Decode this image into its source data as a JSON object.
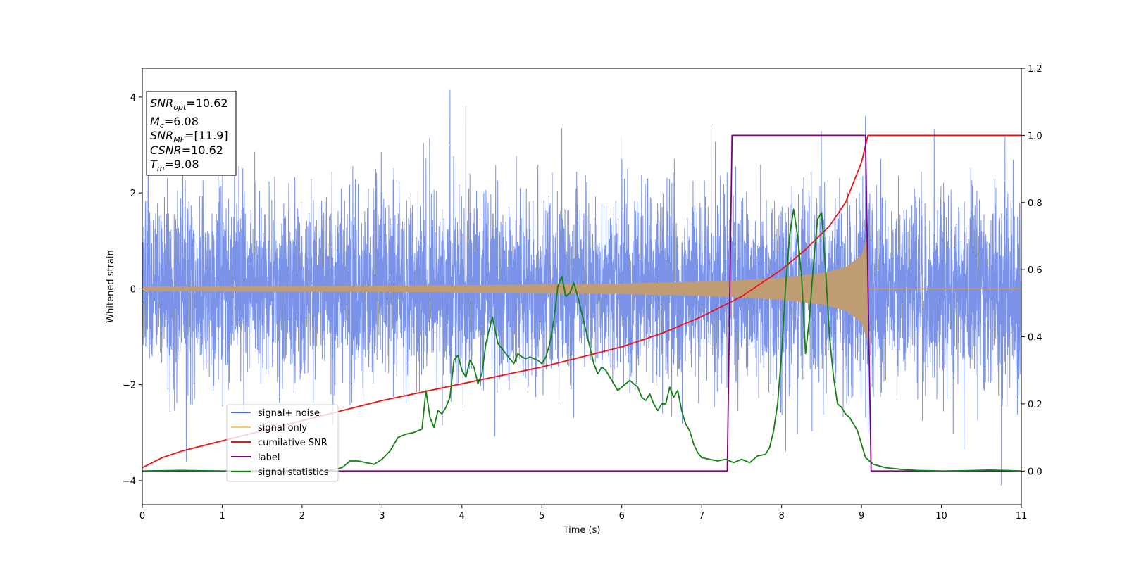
{
  "chart_data": {
    "type": "line",
    "title": "",
    "xlabel": "Time (s)",
    "ylabel": "Whitened strain",
    "xlim": [
      0,
      11
    ],
    "ylim": [
      -4.5,
      4.6
    ],
    "y2lim": [
      -0.1,
      1.2
    ],
    "x_ticks": [
      "0",
      "1",
      "2",
      "3",
      "4",
      "5",
      "6",
      "7",
      "8",
      "9",
      "10",
      "11"
    ],
    "y_ticks": [
      "4",
      "2",
      "0",
      "−2",
      "−4"
    ],
    "y2_ticks": [
      "1.2",
      "1.0",
      "0.8",
      "0.6",
      "0.4",
      "0.2",
      "0.0"
    ],
    "grid": false,
    "legend_position": "bottom-left",
    "legend": [
      "signal+ noise",
      "signal only",
      "cumilative SNR",
      "label",
      "signal statistics"
    ],
    "info_box": {
      "snr_opt": {
        "label": "SNR",
        "sub": "opt",
        "value": "=10.62"
      },
      "mc": {
        "label": "M",
        "sub": "c",
        "value": "=6.08"
      },
      "snr_mf": {
        "label": "SNR",
        "sub": "MF",
        "value": "=[11.9]"
      },
      "csnr": {
        "label": "CSNR",
        "value": "=10.62"
      },
      "tm": {
        "label": "T",
        "sub": "m",
        "value": "=9.08"
      }
    },
    "colors": {
      "noise": "#7a93e8",
      "signal": "#bf9c74",
      "signal_legend": "#f7c96b",
      "snr": "#ee1111",
      "label": "#800080",
      "stat": "#138013"
    },
    "series": [
      {
        "name": "signal+ noise",
        "axis": "left",
        "kind": "noise",
        "std": 0.98,
        "x_range": [
          0,
          11
        ],
        "peaks": [
          {
            "x": 3.85,
            "y": 4.15
          },
          {
            "x": 4.05,
            "y": 3.8
          },
          {
            "x": 5.25,
            "y": 3.35
          },
          {
            "x": 9.05,
            "y": 3.6
          },
          {
            "x": 10.75,
            "y": -4.1
          },
          {
            "x": 0.55,
            "y": -3.6
          }
        ]
      },
      {
        "name": "signal only",
        "axis": "left",
        "kind": "chirp",
        "envelope_x": [
          0,
          1,
          2,
          3,
          4,
          5,
          6,
          7,
          7.5,
          8,
          8.5,
          8.8,
          9.0,
          9.08
        ],
        "envelope_y": [
          0.05,
          0.055,
          0.06,
          0.065,
          0.075,
          0.09,
          0.11,
          0.15,
          0.18,
          0.23,
          0.33,
          0.45,
          0.7,
          1.15
        ],
        "end_x": 9.1
      },
      {
        "name": "cumilative SNR",
        "axis": "right",
        "x": [
          0,
          0.25,
          0.5,
          1,
          1.5,
          2,
          2.5,
          3,
          3.5,
          4,
          4.5,
          5,
          5.5,
          6,
          6.5,
          7,
          7.5,
          8,
          8.3,
          8.6,
          8.8,
          9.0,
          9.08,
          11
        ],
        "y": [
          0.01,
          0.04,
          0.06,
          0.09,
          0.12,
          0.15,
          0.18,
          0.21,
          0.235,
          0.26,
          0.285,
          0.31,
          0.34,
          0.37,
          0.41,
          0.46,
          0.52,
          0.6,
          0.66,
          0.73,
          0.8,
          0.92,
          1.0,
          1.0
        ]
      },
      {
        "name": "label",
        "axis": "right",
        "x": [
          0,
          7.32,
          7.38,
          9.05,
          9.12,
          11
        ],
        "y": [
          0,
          0,
          1,
          1,
          0,
          0
        ]
      },
      {
        "name": "signal statistics",
        "axis": "right",
        "x": [
          0,
          0.5,
          1.0,
          1.5,
          2.0,
          2.3,
          2.5,
          2.6,
          2.7,
          2.8,
          2.9,
          3.0,
          3.1,
          3.15,
          3.2,
          3.3,
          3.4,
          3.5,
          3.55,
          3.6,
          3.65,
          3.7,
          3.75,
          3.8,
          3.85,
          3.9,
          3.95,
          4.0,
          4.05,
          4.1,
          4.15,
          4.2,
          4.25,
          4.3,
          4.38,
          4.45,
          4.55,
          4.65,
          4.7,
          4.75,
          4.8,
          4.85,
          4.9,
          4.95,
          5.0,
          5.05,
          5.1,
          5.15,
          5.2,
          5.25,
          5.3,
          5.35,
          5.4,
          5.45,
          5.5,
          5.55,
          5.6,
          5.65,
          5.7,
          5.75,
          5.8,
          5.85,
          5.9,
          5.95,
          6.0,
          6.05,
          6.1,
          6.15,
          6.2,
          6.25,
          6.3,
          6.35,
          6.4,
          6.45,
          6.5,
          6.55,
          6.6,
          6.65,
          6.7,
          6.75,
          6.8,
          6.85,
          6.9,
          6.95,
          7.0,
          7.1,
          7.2,
          7.3,
          7.4,
          7.5,
          7.6,
          7.7,
          7.8,
          7.85,
          7.9,
          7.95,
          8.0,
          8.05,
          8.1,
          8.15,
          8.2,
          8.25,
          8.3,
          8.35,
          8.4,
          8.45,
          8.5,
          8.55,
          8.6,
          8.65,
          8.7,
          8.75,
          8.8,
          8.85,
          8.9,
          8.95,
          9.0,
          9.05,
          9.1,
          9.15,
          9.3,
          9.5,
          9.7,
          10.0,
          10.3,
          10.6,
          10.8,
          11
        ],
        "y": [
          0,
          0.002,
          0,
          0.001,
          0,
          0,
          0.01,
          0.03,
          0.03,
          0.025,
          0.02,
          0.035,
          0.06,
          0.08,
          0.1,
          0.11,
          0.115,
          0.125,
          0.24,
          0.16,
          0.13,
          0.18,
          0.17,
          0.19,
          0.22,
          0.33,
          0.345,
          0.3,
          0.28,
          0.33,
          0.31,
          0.26,
          0.29,
          0.38,
          0.46,
          0.38,
          0.35,
          0.32,
          0.35,
          0.34,
          0.335,
          0.34,
          0.335,
          0.33,
          0.32,
          0.34,
          0.38,
          0.45,
          0.55,
          0.58,
          0.52,
          0.53,
          0.56,
          0.52,
          0.47,
          0.42,
          0.37,
          0.32,
          0.29,
          0.31,
          0.3,
          0.28,
          0.26,
          0.24,
          0.25,
          0.26,
          0.27,
          0.26,
          0.25,
          0.22,
          0.21,
          0.23,
          0.2,
          0.18,
          0.2,
          0.2,
          0.25,
          0.22,
          0.24,
          0.18,
          0.14,
          0.12,
          0.08,
          0.055,
          0.04,
          0.035,
          0.03,
          0.035,
          0.025,
          0.035,
          0.025,
          0.045,
          0.05,
          0.07,
          0.12,
          0.2,
          0.35,
          0.55,
          0.7,
          0.78,
          0.7,
          0.58,
          0.35,
          0.46,
          0.62,
          0.75,
          0.77,
          0.6,
          0.4,
          0.28,
          0.2,
          0.19,
          0.17,
          0.16,
          0.14,
          0.12,
          0.08,
          0.04,
          0.03,
          0.02,
          0.01,
          0.005,
          0.002,
          0,
          0.001,
          0.003,
          0.002,
          0
        ]
      }
    ]
  }
}
